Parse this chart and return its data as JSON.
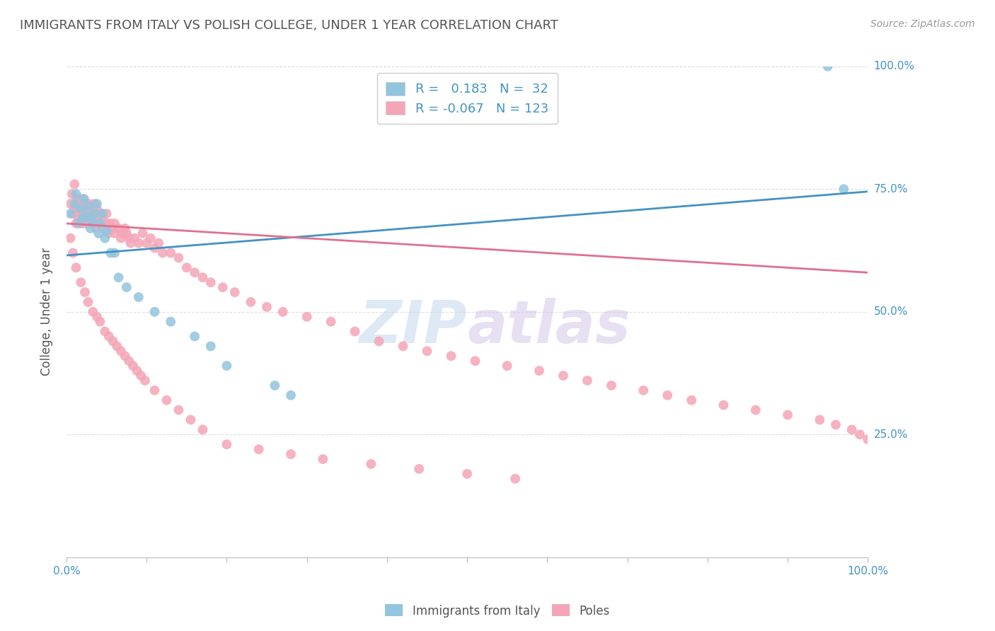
{
  "title": "IMMIGRANTS FROM ITALY VS POLISH COLLEGE, UNDER 1 YEAR CORRELATION CHART",
  "source": "Source: ZipAtlas.com",
  "ylabel": "College, Under 1 year",
  "xlabel": "",
  "xlim": [
    0.0,
    1.0
  ],
  "ylim": [
    0.0,
    1.0
  ],
  "y_tick_labels": [
    "25.0%",
    "50.0%",
    "75.0%",
    "100.0%"
  ],
  "y_tick_positions": [
    0.25,
    0.5,
    0.75,
    1.0
  ],
  "watermark": "ZIPatlas",
  "legend_R1": "0.183",
  "legend_N1": "32",
  "legend_R2": "-0.067",
  "legend_N2": "123",
  "blue_color": "#92c5de",
  "pink_color": "#f4a6b8",
  "blue_line_color": "#4393c3",
  "pink_line_color": "#e07090",
  "title_color": "#555555",
  "label_color": "#4393c3",
  "grid_color": "#dddddd",
  "italy_x": [
    0.005,
    0.01,
    0.012,
    0.015,
    0.018,
    0.02,
    0.022,
    0.025,
    0.028,
    0.03,
    0.032,
    0.035,
    0.038,
    0.04,
    0.042,
    0.045,
    0.048,
    0.05,
    0.055,
    0.06,
    0.065,
    0.075,
    0.09,
    0.11,
    0.13,
    0.16,
    0.18,
    0.2,
    0.26,
    0.28,
    0.95,
    0.97
  ],
  "italy_y": [
    0.7,
    0.72,
    0.74,
    0.68,
    0.71,
    0.69,
    0.73,
    0.695,
    0.715,
    0.67,
    0.685,
    0.7,
    0.72,
    0.66,
    0.68,
    0.7,
    0.65,
    0.665,
    0.62,
    0.62,
    0.57,
    0.55,
    0.53,
    0.5,
    0.48,
    0.45,
    0.43,
    0.39,
    0.35,
    0.33,
    1.0,
    0.75
  ],
  "poles_x": [
    0.005,
    0.007,
    0.008,
    0.01,
    0.01,
    0.012,
    0.013,
    0.015,
    0.015,
    0.017,
    0.018,
    0.02,
    0.02,
    0.022,
    0.022,
    0.025,
    0.025,
    0.027,
    0.028,
    0.03,
    0.03,
    0.032,
    0.033,
    0.035,
    0.035,
    0.037,
    0.038,
    0.04,
    0.04,
    0.042,
    0.043,
    0.045,
    0.047,
    0.05,
    0.05,
    0.052,
    0.055,
    0.057,
    0.06,
    0.06,
    0.065,
    0.068,
    0.07,
    0.073,
    0.075,
    0.078,
    0.08,
    0.085,
    0.09,
    0.095,
    0.1,
    0.105,
    0.11,
    0.115,
    0.12,
    0.13,
    0.14,
    0.15,
    0.16,
    0.17,
    0.18,
    0.195,
    0.21,
    0.23,
    0.25,
    0.27,
    0.3,
    0.33,
    0.36,
    0.39,
    0.42,
    0.45,
    0.48,
    0.51,
    0.55,
    0.59,
    0.62,
    0.65,
    0.68,
    0.72,
    0.75,
    0.78,
    0.82,
    0.86,
    0.9,
    0.94,
    0.96,
    0.98,
    0.99,
    1.0,
    0.005,
    0.008,
    0.012,
    0.018,
    0.023,
    0.027,
    0.033,
    0.038,
    0.042,
    0.048,
    0.053,
    0.058,
    0.063,
    0.068,
    0.073,
    0.078,
    0.083,
    0.088,
    0.093,
    0.098,
    0.11,
    0.125,
    0.14,
    0.155,
    0.17,
    0.2,
    0.24,
    0.28,
    0.32,
    0.38,
    0.44,
    0.5,
    0.56
  ],
  "poles_y": [
    0.72,
    0.74,
    0.7,
    0.76,
    0.71,
    0.68,
    0.73,
    0.72,
    0.69,
    0.71,
    0.7,
    0.73,
    0.68,
    0.72,
    0.69,
    0.68,
    0.71,
    0.7,
    0.72,
    0.69,
    0.71,
    0.68,
    0.7,
    0.69,
    0.72,
    0.67,
    0.71,
    0.68,
    0.7,
    0.68,
    0.7,
    0.69,
    0.67,
    0.68,
    0.7,
    0.66,
    0.68,
    0.67,
    0.68,
    0.66,
    0.67,
    0.65,
    0.66,
    0.67,
    0.66,
    0.65,
    0.64,
    0.65,
    0.64,
    0.66,
    0.64,
    0.65,
    0.63,
    0.64,
    0.62,
    0.62,
    0.61,
    0.59,
    0.58,
    0.57,
    0.56,
    0.55,
    0.54,
    0.52,
    0.51,
    0.5,
    0.49,
    0.48,
    0.46,
    0.44,
    0.43,
    0.42,
    0.41,
    0.4,
    0.39,
    0.38,
    0.37,
    0.36,
    0.35,
    0.34,
    0.33,
    0.32,
    0.31,
    0.3,
    0.29,
    0.28,
    0.27,
    0.26,
    0.25,
    0.24,
    0.65,
    0.62,
    0.59,
    0.56,
    0.54,
    0.52,
    0.5,
    0.49,
    0.48,
    0.46,
    0.45,
    0.44,
    0.43,
    0.42,
    0.41,
    0.4,
    0.39,
    0.38,
    0.37,
    0.36,
    0.34,
    0.32,
    0.3,
    0.28,
    0.26,
    0.23,
    0.22,
    0.21,
    0.2,
    0.19,
    0.18,
    0.17,
    0.16
  ],
  "blue_line_x0": 0.0,
  "blue_line_y0": 0.615,
  "blue_line_x1": 1.0,
  "blue_line_y1": 0.745,
  "pink_line_x0": 0.0,
  "pink_line_y0": 0.68,
  "pink_line_x1": 1.0,
  "pink_line_y1": 0.58
}
